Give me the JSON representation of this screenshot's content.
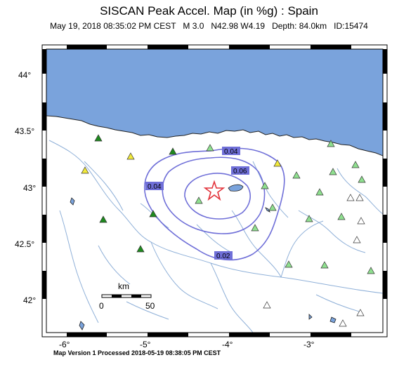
{
  "map": {
    "title": "SISCAN Peak Accel. Map (in %g) : Spain",
    "subtitle": "May 19, 2018 08:35:02 PM CEST   M 3.0   N42.98 W4.19   Depth: 84.0km   ID:15474",
    "footer": "Map Version 1 Processed 2018-05-19 08:38:05 PM CEST",
    "latitude_labels": [
      "44°",
      "43.5°",
      "43°",
      "42.5°",
      "42°"
    ],
    "longitude_labels": [
      "-6°",
      "-5°",
      "-4°",
      "-3°"
    ],
    "contour_labels": [
      "0.04",
      "0.06",
      "0.04",
      "0.02"
    ],
    "scale_bar": {
      "unit": "km",
      "start": "0",
      "end": "50"
    },
    "colors": {
      "sea": "#7aa3dc",
      "land": "#ffffff",
      "contour": "#6f6fd8",
      "contour_label_bg": "#6f6fd8",
      "river": "#8fb0d8",
      "epicenter": "#e2323a",
      "station_dark_green": "#1e8a1e",
      "station_light_green": "#8fe08f",
      "station_yellow": "#f2ea3a",
      "station_white": "#ffffff"
    },
    "epicenter_icon": "star-icon",
    "station_icon": "triangle-icon"
  }
}
